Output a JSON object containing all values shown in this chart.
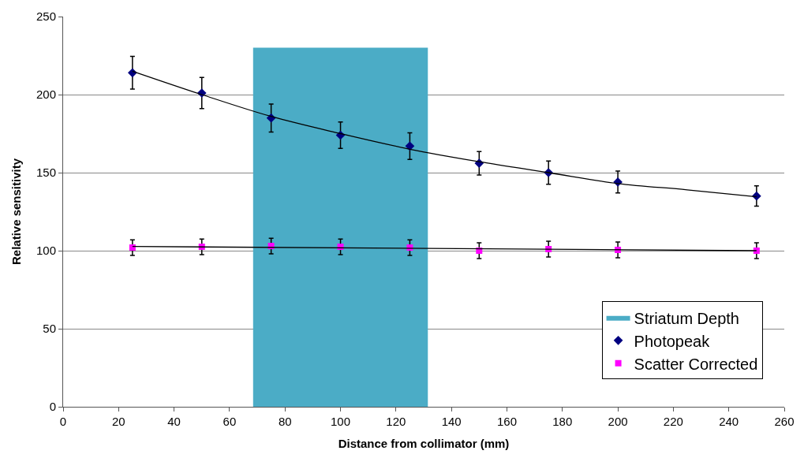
{
  "chart_data": {
    "type": "scatter",
    "xlabel": "Distance from collimator (mm)",
    "ylabel": "Relative sensitivity",
    "xlim": [
      0,
      260
    ],
    "xticks": [
      0,
      20,
      40,
      60,
      80,
      100,
      120,
      140,
      160,
      180,
      200,
      220,
      240,
      260
    ],
    "ylim": [
      0,
      250
    ],
    "yticks": [
      0,
      50,
      100,
      150,
      200,
      250
    ],
    "grid": "y",
    "legend": "bottom right",
    "series": [
      {
        "name": "Striatum Depth",
        "type": "area",
        "color": "#4bacc6",
        "x": [
          68.5,
          131.5
        ],
        "values": [
          230,
          230
        ]
      },
      {
        "name": "Photopeak",
        "marker": "diamond",
        "color": "#000080",
        "x": [
          25,
          50,
          75,
          100,
          125,
          150,
          175,
          200,
          250
        ],
        "values": [
          214,
          201,
          185,
          174,
          167,
          156,
          150,
          144,
          135
        ],
        "errors": [
          10.5,
          10,
          9,
          8.5,
          8.5,
          7.5,
          7.5,
          7,
          6.5
        ]
      },
      {
        "name": "Scatter Corrected",
        "marker": "square",
        "color": "#ff00ff",
        "x": [
          25,
          50,
          75,
          100,
          125,
          150,
          175,
          200,
          250
        ],
        "values": [
          102,
          102.5,
          103,
          102.5,
          102,
          100,
          101,
          100.5,
          100
        ],
        "errors": [
          5,
          5,
          5,
          5,
          5,
          5,
          5,
          5,
          5
        ]
      },
      {
        "type": "line",
        "color": "#000000",
        "x": [
          25,
          50,
          75,
          100,
          125,
          150,
          175,
          200,
          225,
          250
        ],
        "values": [
          215,
          200,
          186,
          175,
          165,
          157,
          150,
          143,
          139,
          134.5
        ]
      },
      {
        "type": "line",
        "color": "#000000",
        "x": [
          25,
          250
        ],
        "values": [
          102.7,
          100
        ]
      }
    ]
  }
}
